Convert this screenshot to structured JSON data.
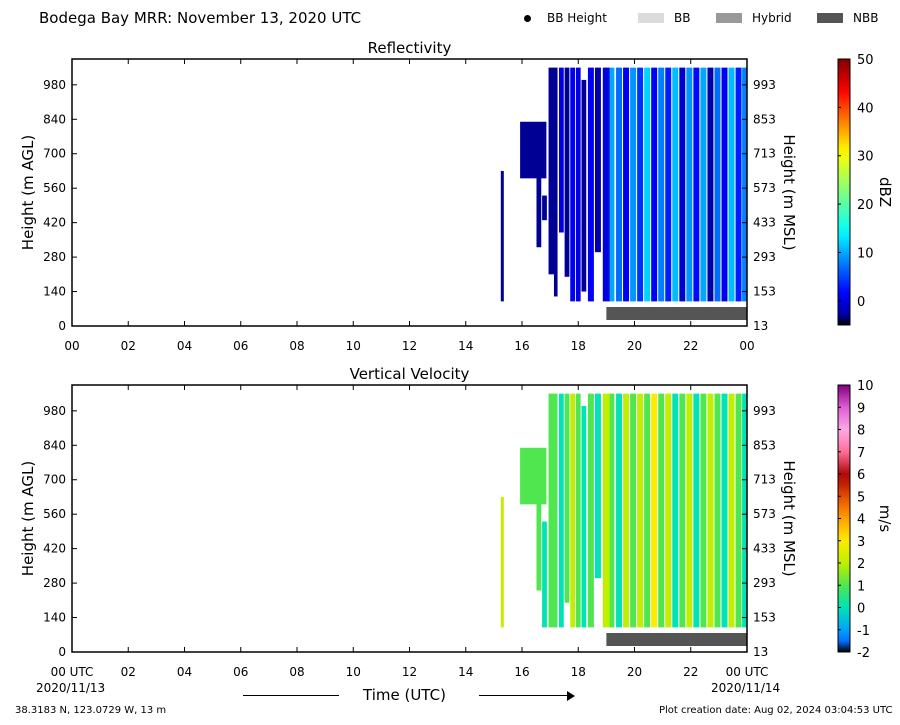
{
  "header": {
    "title": "Bodega Bay MRR:  November 13, 2020 UTC",
    "legend": [
      {
        "label": "BB Height",
        "kind": "dot",
        "color": "#000000"
      },
      {
        "label": "BB",
        "kind": "box",
        "color": "#dcdcdc"
      },
      {
        "label": "Hybrid",
        "kind": "box",
        "color": "#999999"
      },
      {
        "label": "NBB",
        "kind": "box",
        "color": "#555555"
      }
    ]
  },
  "footer": {
    "location": "38.3183 N, 123.0729 W, 13 m",
    "creation": "Plot creation date: Aug 02, 2024 03:04:53 UTC",
    "time_axis_label": "Time (UTC)",
    "start_date": "2020/11/13",
    "end_date": "2020/11/14"
  },
  "chart_data": [
    {
      "type": "heatmap",
      "title": "Reflectivity",
      "ylabel": "Height (m AGL)",
      "ylabel_right": "Height (m MSL)",
      "x_ticks": [
        "00",
        "02",
        "04",
        "06",
        "08",
        "10",
        "12",
        "14",
        "16",
        "18",
        "20",
        "22",
        "00"
      ],
      "xlim": [
        0,
        24
      ],
      "y_ticks": [
        0,
        140,
        280,
        420,
        560,
        700,
        840,
        980
      ],
      "y_ticks_right": [
        13,
        153,
        293,
        433,
        573,
        713,
        853,
        993
      ],
      "ylim": [
        0,
        1085
      ],
      "colorbar": {
        "label": "dBZ",
        "ticks": [
          0,
          10,
          20,
          30,
          40,
          50
        ],
        "range": [
          -5,
          50
        ],
        "colormap": "jet"
      },
      "data_top": 1050,
      "data_bottom": 105,
      "columns": [
        {
          "t": 15.3,
          "bottom": 100,
          "top": 630,
          "value": -4
        },
        {
          "t": 16.4,
          "bottom": 600,
          "top": 830,
          "value": -4
        },
        {
          "t": 16.6,
          "bottom": 320,
          "top": 700,
          "value": -4
        },
        {
          "t": 16.8,
          "bottom": 430,
          "top": 530,
          "value": -4
        },
        {
          "t": 17.05,
          "bottom": 210,
          "top": 1050,
          "value": -4
        },
        {
          "t": 17.2,
          "bottom": 120,
          "top": 1050,
          "value": -4
        },
        {
          "t": 17.4,
          "bottom": 380,
          "top": 1050,
          "value": 0
        },
        {
          "t": 17.6,
          "bottom": 200,
          "top": 1050,
          "value": -4
        },
        {
          "t": 17.8,
          "bottom": 100,
          "top": 1050,
          "value": 1
        },
        {
          "t": 18.0,
          "bottom": 100,
          "top": 1050,
          "value": 0
        },
        {
          "t": 18.2,
          "bottom": 140,
          "top": 1000,
          "value": -4
        },
        {
          "t": 18.45,
          "bottom": 100,
          "top": 1050,
          "value": 1
        },
        {
          "t": 18.7,
          "bottom": 300,
          "top": 1050,
          "value": -3
        },
        {
          "t": 19.0,
          "bottom": 100,
          "top": 1050,
          "value": 0
        },
        {
          "t": 19.2,
          "bottom": 100,
          "top": 1050,
          "value": 10
        },
        {
          "t": 19.45,
          "bottom": 100,
          "top": 1050,
          "value": 7
        },
        {
          "t": 19.7,
          "bottom": 100,
          "top": 1050,
          "value": 1
        },
        {
          "t": 19.95,
          "bottom": 100,
          "top": 1050,
          "value": 9
        },
        {
          "t": 20.2,
          "bottom": 100,
          "top": 1050,
          "value": 4
        },
        {
          "t": 20.45,
          "bottom": 100,
          "top": 1050,
          "value": 12
        },
        {
          "t": 20.7,
          "bottom": 100,
          "top": 1050,
          "value": 1
        },
        {
          "t": 20.95,
          "bottom": 100,
          "top": 1050,
          "value": 8
        },
        {
          "t": 21.2,
          "bottom": 100,
          "top": 1050,
          "value": 3
        },
        {
          "t": 21.45,
          "bottom": 100,
          "top": 1050,
          "value": 11
        },
        {
          "t": 21.7,
          "bottom": 100,
          "top": 1050,
          "value": -1
        },
        {
          "t": 21.95,
          "bottom": 100,
          "top": 1050,
          "value": 9
        },
        {
          "t": 22.2,
          "bottom": 100,
          "top": 1050,
          "value": 2
        },
        {
          "t": 22.45,
          "bottom": 100,
          "top": 1050,
          "value": 10
        },
        {
          "t": 22.7,
          "bottom": 100,
          "top": 1050,
          "value": -3
        },
        {
          "t": 22.95,
          "bottom": 100,
          "top": 1050,
          "value": 7
        },
        {
          "t": 23.2,
          "bottom": 100,
          "top": 1050,
          "value": 1
        },
        {
          "t": 23.45,
          "bottom": 100,
          "top": 1050,
          "value": 11
        },
        {
          "t": 23.7,
          "bottom": 100,
          "top": 1050,
          "value": 3
        },
        {
          "t": 23.92,
          "bottom": 100,
          "top": 1050,
          "value": 8
        }
      ],
      "nbb_bar": {
        "t_start": 19.0,
        "t_end": 24.0
      }
    },
    {
      "type": "heatmap",
      "title": "Vertical Velocity",
      "ylabel": "Height (m AGL)",
      "ylabel_right": "Height (m MSL)",
      "x_ticks": [
        "00 UTC",
        "02",
        "04",
        "06",
        "08",
        "10",
        "12",
        "14",
        "16",
        "18",
        "20",
        "22",
        "00 UTC"
      ],
      "xlim": [
        0,
        24
      ],
      "y_ticks": [
        0,
        140,
        280,
        420,
        560,
        700,
        840,
        980
      ],
      "y_ticks_right": [
        13,
        153,
        293,
        433,
        573,
        713,
        853,
        993
      ],
      "ylim": [
        0,
        1085
      ],
      "colorbar": {
        "label": "m/s",
        "ticks": [
          -2,
          -1,
          0,
          1,
          2,
          3,
          4,
          5,
          6,
          7,
          8,
          9,
          10
        ],
        "range": [
          -2,
          10
        ],
        "colormap": "velocity"
      },
      "columns": [
        {
          "t": 15.3,
          "bottom": 100,
          "top": 630,
          "value": 2
        },
        {
          "t": 16.4,
          "bottom": 600,
          "top": 830,
          "value": 1
        },
        {
          "t": 16.6,
          "bottom": 250,
          "top": 700,
          "value": 1
        },
        {
          "t": 16.8,
          "bottom": 100,
          "top": 530,
          "value": 0
        },
        {
          "t": 17.05,
          "bottom": 100,
          "top": 1050,
          "value": 1
        },
        {
          "t": 17.2,
          "bottom": 100,
          "top": 1050,
          "value": 1
        },
        {
          "t": 17.4,
          "bottom": 100,
          "top": 1050,
          "value": 0
        },
        {
          "t": 17.6,
          "bottom": 200,
          "top": 1050,
          "value": 1
        },
        {
          "t": 17.8,
          "bottom": 100,
          "top": 1050,
          "value": 2
        },
        {
          "t": 18.0,
          "bottom": 100,
          "top": 1050,
          "value": 1
        },
        {
          "t": 18.2,
          "bottom": 100,
          "top": 1000,
          "value": 0
        },
        {
          "t": 18.45,
          "bottom": 100,
          "top": 1050,
          "value": 1
        },
        {
          "t": 18.7,
          "bottom": 300,
          "top": 1050,
          "value": 0
        },
        {
          "t": 19.0,
          "bottom": 100,
          "top": 1050,
          "value": 2
        },
        {
          "t": 19.2,
          "bottom": 100,
          "top": 1050,
          "value": 1
        },
        {
          "t": 19.45,
          "bottom": 100,
          "top": 1050,
          "value": 0
        },
        {
          "t": 19.7,
          "bottom": 100,
          "top": 1050,
          "value": 2
        },
        {
          "t": 19.95,
          "bottom": 100,
          "top": 1050,
          "value": 1
        },
        {
          "t": 20.2,
          "bottom": 100,
          "top": 1050,
          "value": 2
        },
        {
          "t": 20.45,
          "bottom": 100,
          "top": 1050,
          "value": 1
        },
        {
          "t": 20.7,
          "bottom": 100,
          "top": 1050,
          "value": 3
        },
        {
          "t": 20.95,
          "bottom": 100,
          "top": 1050,
          "value": 1
        },
        {
          "t": 21.2,
          "bottom": 100,
          "top": 1050,
          "value": 2
        },
        {
          "t": 21.45,
          "bottom": 100,
          "top": 1050,
          "value": 0
        },
        {
          "t": 21.7,
          "bottom": 100,
          "top": 1050,
          "value": 1
        },
        {
          "t": 21.95,
          "bottom": 100,
          "top": 1050,
          "value": 2
        },
        {
          "t": 22.2,
          "bottom": 100,
          "top": 1050,
          "value": 0
        },
        {
          "t": 22.45,
          "bottom": 100,
          "top": 1050,
          "value": 1
        },
        {
          "t": 22.7,
          "bottom": 100,
          "top": 1050,
          "value": 2
        },
        {
          "t": 22.95,
          "bottom": 100,
          "top": 1050,
          "value": 1
        },
        {
          "t": 23.2,
          "bottom": 100,
          "top": 1050,
          "value": 0
        },
        {
          "t": 23.45,
          "bottom": 100,
          "top": 1050,
          "value": 2
        },
        {
          "t": 23.7,
          "bottom": 100,
          "top": 1050,
          "value": 1
        },
        {
          "t": 23.92,
          "bottom": 100,
          "top": 1050,
          "value": 0
        }
      ],
      "nbb_bar": {
        "t_start": 19.0,
        "t_end": 24.0
      }
    }
  ]
}
